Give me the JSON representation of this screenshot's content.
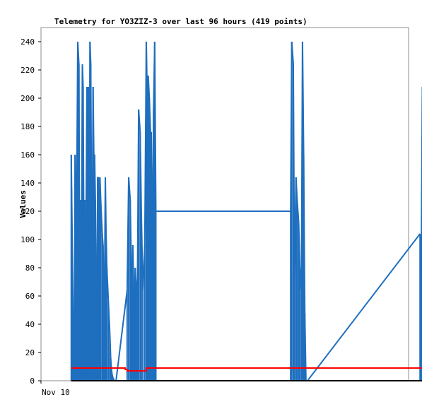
{
  "chart_data": {
    "type": "line",
    "title": "Telemetry for YO3ZIZ-3 over last 96 hours (419 points)",
    "xlabel": "",
    "ylabel": "Values",
    "x_tick_labels": [
      {
        "label": "Nov 10",
        "hour": 0
      }
    ],
    "xlim_hours": [
      0,
      96
    ],
    "ylim": [
      0,
      250
    ],
    "y_ticks": [
      0,
      20,
      40,
      60,
      80,
      100,
      120,
      140,
      160,
      180,
      200,
      220,
      240
    ],
    "grid": false,
    "legend": "none",
    "series": [
      {
        "color": "#1f6fbf",
        "style": "spikes",
        "x": [
          7.9,
          8.0,
          8.2,
          8.4,
          8.7,
          8.9,
          9.2,
          9.4,
          9.6,
          9.9,
          10.1,
          10.3,
          10.5,
          10.8,
          11.0,
          11.2,
          11.4,
          11.6,
          11.8,
          12.0,
          12.2,
          12.4,
          12.6,
          12.8,
          13.0,
          13.2,
          13.4,
          13.6,
          13.8,
          14.0,
          14.2,
          14.4,
          14.6,
          14.8,
          15.0,
          15.2,
          15.4,
          15.6,
          16.0,
          16.2,
          16.4,
          16.6,
          16.8,
          17.0,
          17.2,
          17.6,
          18.0,
          18.2,
          18.4,
          18.6,
          18.8,
          19.0,
          19.2,
          19.4,
          19.6,
          22.5,
          22.9,
          23.3,
          23.5,
          23.8,
          24.0,
          24.3,
          24.6,
          24.9,
          25.2,
          25.5,
          25.9,
          26.2,
          26.6,
          27.1,
          27.5,
          27.7,
          28.0,
          28.3,
          28.6,
          28.8,
          29.1,
          29.4,
          29.7,
          30.0,
          65.2,
          65.5,
          65.9,
          66.2,
          66.6,
          66.9,
          67.3,
          67.6,
          68.0,
          68.3,
          68.6,
          68.9,
          69.2,
          69.6,
          99.0,
          99.3,
          99.6,
          99.9,
          100.2,
          100.5,
          100.8,
          101.1,
          101.4,
          101.6
        ],
        "values": [
          160,
          136,
          88,
          48,
          16,
          160,
          121,
          160,
          240,
          224,
          64,
          128,
          32,
          224,
          208,
          96,
          128,
          64,
          128,
          208,
          192,
          208,
          88,
          240,
          224,
          120,
          96,
          208,
          160,
          160,
          128,
          64,
          48,
          144,
          144,
          80,
          144,
          128,
          104,
          96,
          72,
          64,
          144,
          104,
          80,
          56,
          32,
          16,
          8,
          4,
          2,
          1,
          0,
          0,
          0,
          64,
          144,
          128,
          96,
          64,
          96,
          48,
          80,
          64,
          72,
          192,
          176,
          120,
          64,
          96,
          240,
          208,
          216,
          200,
          176,
          176,
          88,
          192,
          240,
          120,
          120,
          240,
          224,
          72,
          144,
          128,
          112,
          80,
          64,
          240,
          160,
          48,
          0,
          0,
          104,
          80,
          208,
          184,
          120,
          224,
          176,
          88,
          0,
          0
        ]
      },
      {
        "color": "#ff0000",
        "style": "step",
        "x": [
          7.9,
          22.0,
          22.5,
          27.5,
          101.8
        ],
        "values": [
          9,
          8,
          7,
          9,
          9
        ]
      },
      {
        "color": "#000000",
        "style": "step",
        "x": [
          7.9,
          101.8
        ],
        "values": [
          0,
          0
        ]
      }
    ]
  }
}
